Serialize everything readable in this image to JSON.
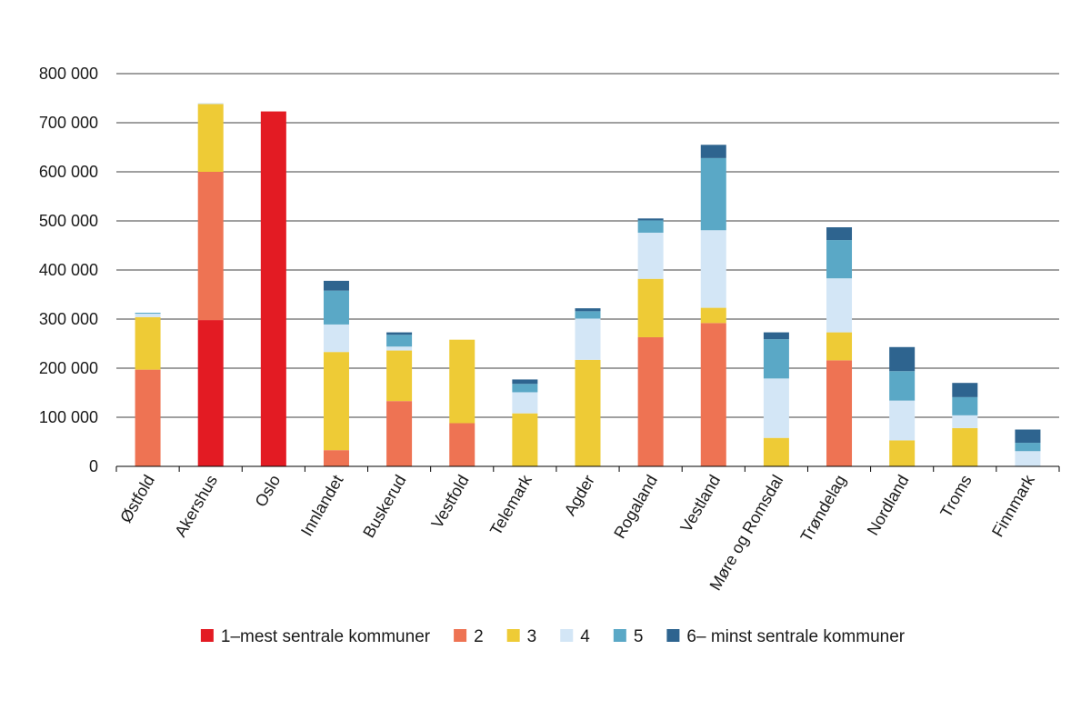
{
  "chart_data": {
    "type": "bar",
    "stacked": true,
    "title": "",
    "xlabel": "",
    "ylabel": "",
    "ylim": [
      0,
      800000
    ],
    "yticks": [
      0,
      100000,
      200000,
      300000,
      400000,
      500000,
      600000,
      700000,
      800000
    ],
    "ytick_labels": [
      "0",
      "100 000",
      "200 000",
      "300 000",
      "400 000",
      "500 000",
      "600 000",
      "700 000",
      "800 000"
    ],
    "grid": true,
    "legend_position": "bottom",
    "categories": [
      "Østfold",
      "Akershus",
      "Oslo",
      "Innlandet",
      "Buskerud",
      "Vestfold",
      "Telemark",
      "Agder",
      "Rogaland",
      "Vestland",
      "Møre og Romsdal",
      "Trøndelag",
      "Nordland",
      "Troms",
      "Finnmark"
    ],
    "series": [
      {
        "name": "1–mest sentrale kommuner",
        "color": "#e31b23",
        "values": [
          0,
          298000,
          723000,
          0,
          0,
          0,
          0,
          0,
          0,
          0,
          0,
          0,
          0,
          0,
          0
        ]
      },
      {
        "name": "2",
        "color": "#ee7353",
        "values": [
          197000,
          302000,
          0,
          33000,
          133000,
          88000,
          0,
          0,
          263000,
          292000,
          0,
          216000,
          0,
          0,
          0
        ]
      },
      {
        "name": "3",
        "color": "#eecb36",
        "values": [
          107000,
          138000,
          0,
          200000,
          103000,
          170000,
          108000,
          217000,
          119000,
          31000,
          58000,
          57000,
          53000,
          78000,
          0
        ]
      },
      {
        "name": "4",
        "color": "#d3e6f6",
        "values": [
          7000,
          2000,
          0,
          56000,
          8000,
          0,
          43000,
          84000,
          94000,
          158000,
          121000,
          110000,
          81000,
          26000,
          31000
        ]
      },
      {
        "name": "5",
        "color": "#5aa8c6",
        "values": [
          2000,
          0,
          0,
          69000,
          24000,
          0,
          17000,
          15000,
          25000,
          147000,
          80000,
          78000,
          60000,
          37000,
          17000
        ]
      },
      {
        "name": "6– minst sentrale kommuner",
        "color": "#2e648f",
        "values": [
          0,
          0,
          0,
          20000,
          5000,
          0,
          9000,
          6000,
          4000,
          27000,
          14000,
          26000,
          49000,
          29000,
          27000
        ]
      }
    ]
  }
}
